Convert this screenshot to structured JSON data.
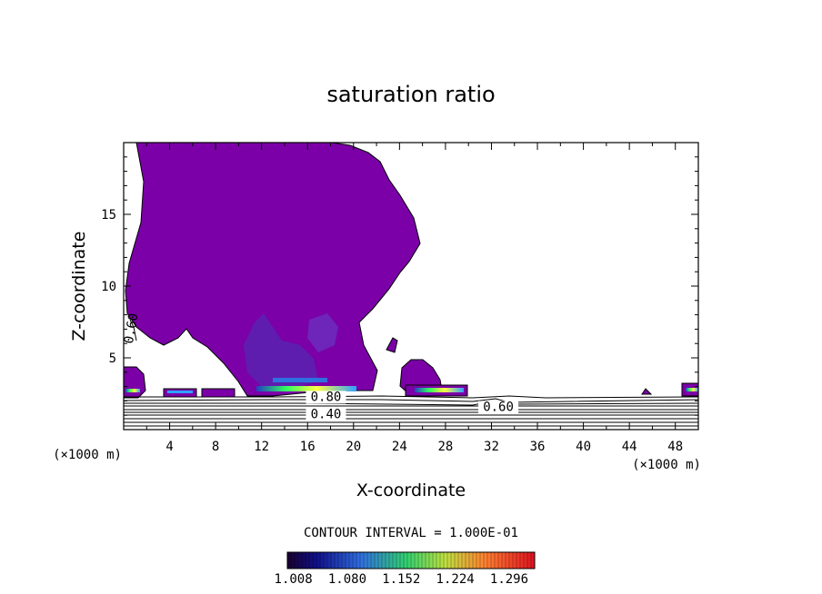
{
  "chart_data": {
    "type": "contour",
    "title": "saturation ratio",
    "xlabel": "X-coordinate",
    "ylabel": "Z-coordinate",
    "x_unit_label": "(×1000 m)",
    "z_unit_label": "(×1000 m)",
    "xlim": [
      0,
      50
    ],
    "ylim": [
      0,
      20
    ],
    "x_ticks": [
      4,
      8,
      12,
      16,
      20,
      24,
      28,
      32,
      36,
      40,
      44,
      48
    ],
    "y_ticks": [
      5,
      10,
      15
    ],
    "contour_interval_text": "CONTOUR INTERVAL = 1.000E-01",
    "contour_labels": [
      {
        "text": "0.80",
        "x": 17.6,
        "z": 2.0
      },
      {
        "text": "0.40",
        "x": 17.6,
        "z": 0.8
      },
      {
        "text": "0.60",
        "x": 32.6,
        "z": 1.3
      },
      {
        "text": "0.60",
        "x": 1.0,
        "z": 7.0
      }
    ],
    "colorbar": {
      "ticks": [
        1.008,
        1.08,
        1.152,
        1.224,
        1.296
      ],
      "tick_labels": [
        "1.008",
        "1.080",
        "1.152",
        "1.224",
        "1.296"
      ],
      "colors": [
        "#000040",
        "#2020a0",
        "#3090ff",
        "#30ff60",
        "#ffff40",
        "#ff6020",
        "#ff1010"
      ]
    },
    "fill_color_main": "#7b00a8",
    "contour_line_color": "#000000",
    "grid": false
  }
}
